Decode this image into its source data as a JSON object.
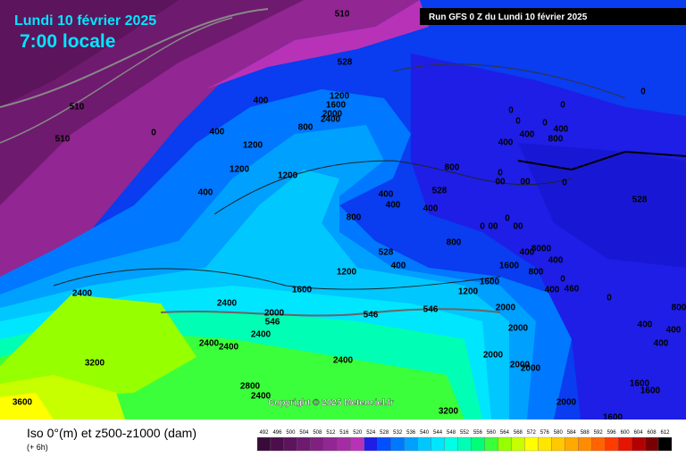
{
  "header": {
    "date": "Lundi 10 février 2025",
    "time": "7:00 locale",
    "run": "Run GFS 0 Z du Lundi 10 février 2025"
  },
  "copyright": "Copyright © 2025 Meteociel.fr",
  "legend": {
    "title": "Iso 0°(m) et z500-z1000 (dam)",
    "step": "(+ 6h)",
    "values": [
      492,
      496,
      500,
      504,
      508,
      512,
      516,
      520,
      524,
      528,
      532,
      536,
      540,
      544,
      548,
      552,
      556,
      560,
      564,
      568,
      572,
      576,
      580,
      584,
      588,
      592,
      596,
      600,
      604,
      608,
      612
    ],
    "colors": [
      "#3a0a3a",
      "#4b0f4b",
      "#5c145c",
      "#6e1a6e",
      "#802080",
      "#922692",
      "#a52ca5",
      "#b832b8",
      "#1e1ee6",
      "#0050ff",
      "#0078ff",
      "#00a0ff",
      "#00c8ff",
      "#00e6ff",
      "#00ffe6",
      "#00ffb4",
      "#00ff78",
      "#3cff3c",
      "#96ff00",
      "#c8ff00",
      "#ffff00",
      "#ffe600",
      "#ffc800",
      "#ffaa00",
      "#ff8c00",
      "#ff6400",
      "#ff3c00",
      "#e61400",
      "#b40000",
      "#780000",
      "#000000"
    ]
  },
  "contour_labels": [
    "510",
    "510",
    "510",
    "528",
    "0",
    "400",
    "400",
    "1200",
    "1600",
    "2000",
    "2400",
    "800",
    "1200",
    "1200",
    "1200",
    "400",
    "800",
    "528",
    "400",
    "400",
    "400",
    "800",
    "800",
    "528",
    "400",
    "1200",
    "1600",
    "2400",
    "2400",
    "2000",
    "546",
    "546",
    "546",
    "2400",
    "2400",
    "2400",
    "3200",
    "2400",
    "2800",
    "2400",
    "3600",
    "3200",
    "1600",
    "1200",
    "2000",
    "2000",
    "2000",
    "2000",
    "2000",
    "2000",
    "1600",
    "1600",
    "1600",
    "400",
    "400",
    "800",
    "528",
    "0",
    "0",
    "0",
    "0",
    "400",
    "400",
    "800",
    "400",
    "0",
    "0",
    "00",
    "00",
    "0",
    "0",
    "00",
    "0",
    "00",
    "8000",
    "400",
    "400",
    "800",
    "1600",
    "400",
    "0",
    "460",
    "0",
    "400"
  ]
}
